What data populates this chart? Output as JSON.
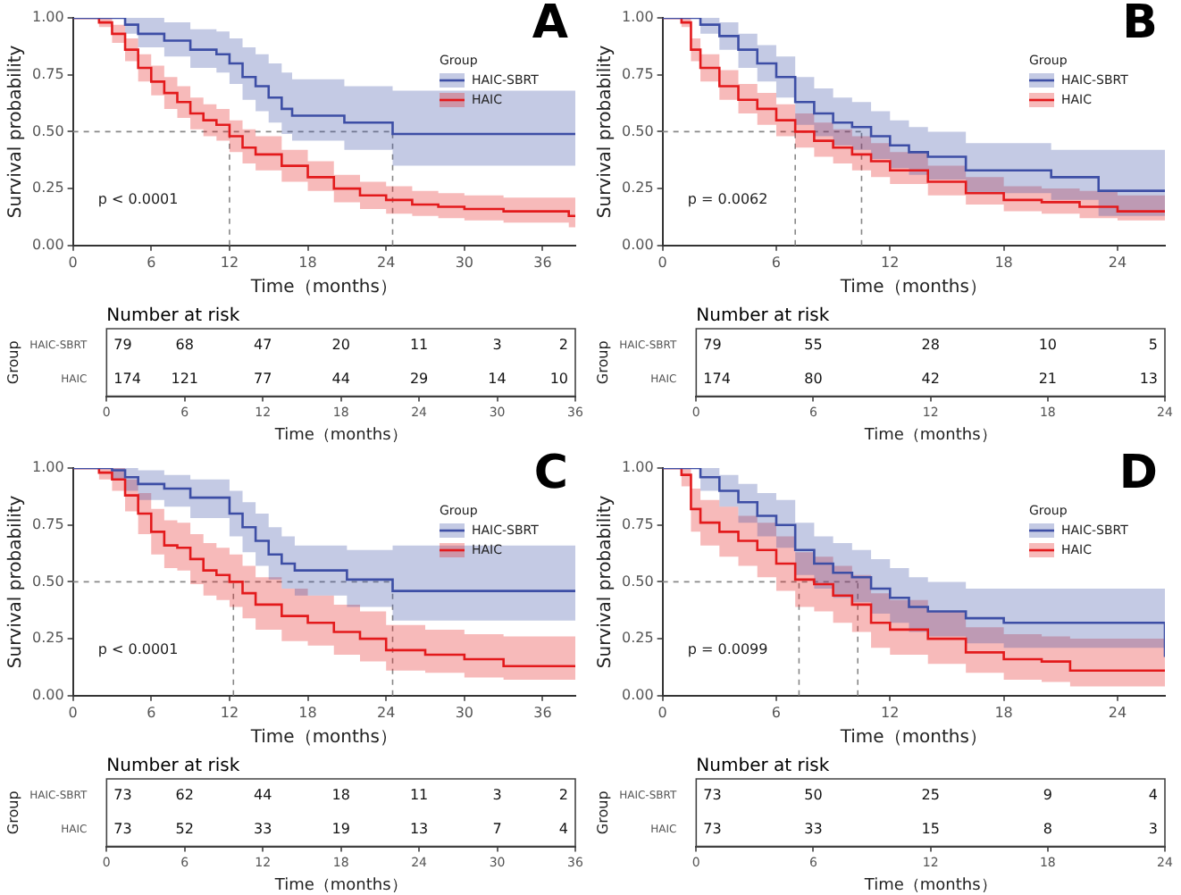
{
  "chart_data": [
    {
      "type": "step",
      "title": "A",
      "xlabel": "Time（months）",
      "ylabel": "Survival probability",
      "legend_title": "Group",
      "legend": "top right",
      "annotations": [
        "p < 0.0001"
      ],
      "xlim": [
        0,
        38.5
      ],
      "xticks": [
        0,
        6,
        12,
        18,
        24,
        30,
        36
      ],
      "ylim": [
        0,
        1
      ],
      "yticks": [
        {
          "value": 0,
          "label": "0.00"
        },
        {
          "value": 0.25,
          "label": "0.25"
        },
        {
          "value": 0.5,
          "label": "0.50"
        },
        {
          "value": 0.75,
          "label": "0.75"
        },
        {
          "value": 1,
          "label": "1.00"
        }
      ],
      "ref_lines": [
        {
          "axis": "y",
          "value": 0.5,
          "line_style": "dashed",
          "color": "#888888"
        },
        {
          "axis": "x",
          "value": 12,
          "line_style": "dashed",
          "color": "#888888"
        },
        {
          "axis": "x",
          "value": 24.5,
          "line_style": "dashed",
          "color": "#888888"
        }
      ],
      "series": [
        {
          "name": "HAIC-SBRT",
          "color": "#3d4ea5",
          "x": [
            0,
            4,
            5,
            7,
            9,
            11,
            12,
            13,
            14,
            15,
            16,
            16.8,
            20.8,
            24.5,
            38.5
          ],
          "values": [
            1,
            0.97,
            0.93,
            0.9,
            0.86,
            0.84,
            0.8,
            0.74,
            0.7,
            0.65,
            0.6,
            0.57,
            0.54,
            0.49,
            0.49
          ],
          "lower": [
            1,
            0.93,
            0.87,
            0.83,
            0.78,
            0.76,
            0.71,
            0.64,
            0.59,
            0.54,
            0.49,
            0.46,
            0.42,
            0.35,
            0.35
          ],
          "upper": [
            1,
            1,
            1,
            0.98,
            0.95,
            0.94,
            0.91,
            0.87,
            0.84,
            0.8,
            0.76,
            0.73,
            0.7,
            0.68,
            0.68
          ]
        },
        {
          "name": "HAIC",
          "color": "#e31a1c",
          "x": [
            0,
            2,
            3,
            4,
            5,
            6,
            7,
            8,
            9,
            10,
            11,
            12,
            13,
            14,
            16,
            18,
            20,
            22,
            24,
            26,
            28,
            30,
            33,
            38,
            38.5
          ],
          "values": [
            1,
            0.98,
            0.93,
            0.86,
            0.78,
            0.72,
            0.67,
            0.63,
            0.58,
            0.55,
            0.53,
            0.48,
            0.43,
            0.4,
            0.35,
            0.3,
            0.25,
            0.22,
            0.2,
            0.18,
            0.17,
            0.16,
            0.15,
            0.13,
            0.13
          ],
          "lower": [
            1,
            0.96,
            0.89,
            0.81,
            0.72,
            0.66,
            0.6,
            0.56,
            0.51,
            0.48,
            0.46,
            0.41,
            0.36,
            0.33,
            0.28,
            0.24,
            0.19,
            0.16,
            0.14,
            0.13,
            0.12,
            0.11,
            0.1,
            0.08,
            0.08
          ],
          "upper": [
            1,
            1,
            0.97,
            0.91,
            0.84,
            0.79,
            0.74,
            0.7,
            0.65,
            0.62,
            0.6,
            0.55,
            0.51,
            0.48,
            0.42,
            0.37,
            0.31,
            0.28,
            0.26,
            0.24,
            0.23,
            0.22,
            0.21,
            0.21,
            0.21
          ]
        }
      ]
    },
    {
      "type": "step",
      "title": "B",
      "xlabel": "Time（months）",
      "ylabel": "Survival probability",
      "legend_title": "Group",
      "legend": "top right",
      "annotations": [
        "p = 0.0062"
      ],
      "xlim": [
        0,
        26.5
      ],
      "xticks": [
        0,
        6,
        12,
        18,
        24
      ],
      "ylim": [
        0,
        1
      ],
      "yticks": [
        {
          "value": 0,
          "label": "0.00"
        },
        {
          "value": 0.25,
          "label": "0.25"
        },
        {
          "value": 0.5,
          "label": "0.50"
        },
        {
          "value": 0.75,
          "label": "0.75"
        },
        {
          "value": 1,
          "label": "1.00"
        }
      ],
      "ref_lines": [
        {
          "axis": "y",
          "value": 0.5,
          "line_style": "dashed",
          "color": "#888888"
        },
        {
          "axis": "x",
          "value": 7,
          "line_style": "dashed",
          "color": "#888888"
        },
        {
          "axis": "x",
          "value": 10.5,
          "line_style": "dashed",
          "color": "#888888"
        }
      ],
      "series": [
        {
          "name": "HAIC-SBRT",
          "color": "#3d4ea5",
          "x": [
            0,
            2,
            3,
            4,
            5,
            6,
            7,
            8,
            9,
            10,
            11,
            12,
            13,
            14,
            16,
            18,
            20.5,
            23,
            26.5
          ],
          "values": [
            1,
            0.97,
            0.92,
            0.86,
            0.8,
            0.74,
            0.63,
            0.58,
            0.54,
            0.52,
            0.48,
            0.44,
            0.41,
            0.39,
            0.33,
            0.33,
            0.3,
            0.24,
            0.24
          ],
          "lower": [
            1,
            0.93,
            0.86,
            0.78,
            0.72,
            0.65,
            0.53,
            0.48,
            0.44,
            0.42,
            0.38,
            0.34,
            0.31,
            0.29,
            0.23,
            0.23,
            0.2,
            0.13,
            0.13
          ],
          "upper": [
            1,
            1,
            0.98,
            0.93,
            0.88,
            0.83,
            0.74,
            0.69,
            0.65,
            0.63,
            0.59,
            0.55,
            0.52,
            0.5,
            0.45,
            0.45,
            0.42,
            0.42,
            0.42
          ]
        },
        {
          "name": "HAIC",
          "color": "#e31a1c",
          "x": [
            0,
            1,
            1.5,
            2,
            3,
            4,
            5,
            6,
            7,
            8,
            9,
            10,
            11,
            12,
            14,
            16,
            18,
            20,
            22,
            24,
            26.5
          ],
          "values": [
            1,
            0.98,
            0.86,
            0.78,
            0.7,
            0.64,
            0.6,
            0.55,
            0.5,
            0.46,
            0.43,
            0.4,
            0.37,
            0.33,
            0.28,
            0.23,
            0.2,
            0.19,
            0.17,
            0.15,
            0.15
          ],
          "lower": [
            1,
            0.96,
            0.81,
            0.72,
            0.64,
            0.58,
            0.53,
            0.48,
            0.43,
            0.39,
            0.36,
            0.33,
            0.3,
            0.27,
            0.22,
            0.18,
            0.15,
            0.14,
            0.12,
            0.11,
            0.11
          ],
          "upper": [
            1,
            1,
            0.91,
            0.84,
            0.77,
            0.71,
            0.67,
            0.62,
            0.58,
            0.54,
            0.51,
            0.48,
            0.45,
            0.41,
            0.35,
            0.3,
            0.26,
            0.25,
            0.24,
            0.22,
            0.22
          ]
        }
      ]
    },
    {
      "type": "heatmap",
      "title": "Number at risk",
      "xlabel": "Time（months）",
      "ylabel": "Group",
      "categories": [
        "0",
        "6",
        "12",
        "18",
        "24",
        "30",
        "36"
      ],
      "y_categories": [
        "HAIC-SBRT",
        "HAIC"
      ],
      "data_labels": true,
      "cells": [
        [
          79,
          68,
          47,
          20,
          11,
          3,
          2
        ],
        [
          174,
          121,
          77,
          44,
          29,
          14,
          10
        ]
      ]
    },
    {
      "type": "heatmap",
      "title": "Number at risk",
      "xlabel": "Time（months）",
      "ylabel": "Group",
      "categories": [
        "0",
        "6",
        "12",
        "18",
        "24"
      ],
      "y_categories": [
        "HAIC-SBRT",
        "HAIC"
      ],
      "data_labels": true,
      "cells": [
        [
          79,
          55,
          28,
          10,
          5
        ],
        [
          174,
          80,
          42,
          21,
          13
        ]
      ]
    },
    {
      "type": "step",
      "title": "C",
      "xlabel": "Time（months）",
      "ylabel": "Survival probability",
      "legend_title": "Group",
      "legend": "top right",
      "annotations": [
        "p < 0.0001"
      ],
      "xlim": [
        0,
        38.5
      ],
      "xticks": [
        0,
        6,
        12,
        18,
        24,
        30,
        36
      ],
      "ylim": [
        0,
        1
      ],
      "yticks": [
        {
          "value": 0,
          "label": "0.00"
        },
        {
          "value": 0.25,
          "label": "0.25"
        },
        {
          "value": 0.5,
          "label": "0.50"
        },
        {
          "value": 0.75,
          "label": "0.75"
        },
        {
          "value": 1,
          "label": "1.00"
        }
      ],
      "ref_lines": [
        {
          "axis": "y",
          "value": 0.5,
          "line_style": "dashed",
          "color": "#888888"
        },
        {
          "axis": "x",
          "value": 12.3,
          "line_style": "dashed",
          "color": "#888888"
        },
        {
          "axis": "x",
          "value": 24.5,
          "line_style": "dashed",
          "color": "#888888"
        }
      ],
      "series": [
        {
          "name": "HAIC-SBRT",
          "color": "#3d4ea5",
          "x": [
            0,
            3,
            4,
            5,
            7,
            9,
            12,
            13,
            14,
            15,
            16,
            17,
            21,
            24.5,
            38.5
          ],
          "values": [
            1,
            0.99,
            0.96,
            0.93,
            0.91,
            0.87,
            0.8,
            0.74,
            0.68,
            0.62,
            0.58,
            0.55,
            0.51,
            0.46,
            0.46
          ],
          "lower": [
            1,
            0.95,
            0.9,
            0.86,
            0.83,
            0.78,
            0.7,
            0.63,
            0.57,
            0.51,
            0.47,
            0.44,
            0.39,
            0.33,
            0.33
          ],
          "upper": [
            1,
            1,
            1,
            0.99,
            0.97,
            0.95,
            0.9,
            0.85,
            0.8,
            0.74,
            0.7,
            0.66,
            0.64,
            0.66,
            0.66
          ]
        },
        {
          "name": "HAIC",
          "color": "#e31a1c",
          "x": [
            0,
            2,
            3,
            4,
            5,
            6,
            7,
            8,
            9,
            10,
            11,
            12,
            13,
            14,
            16,
            18,
            20,
            22,
            24,
            27,
            30,
            33,
            38.5
          ],
          "values": [
            1,
            0.98,
            0.95,
            0.88,
            0.8,
            0.72,
            0.66,
            0.65,
            0.6,
            0.55,
            0.53,
            0.5,
            0.45,
            0.4,
            0.35,
            0.32,
            0.28,
            0.25,
            0.2,
            0.18,
            0.16,
            0.13,
            0.13
          ],
          "lower": [
            1,
            0.95,
            0.9,
            0.81,
            0.71,
            0.62,
            0.56,
            0.55,
            0.49,
            0.44,
            0.42,
            0.39,
            0.34,
            0.29,
            0.24,
            0.22,
            0.18,
            0.15,
            0.11,
            0.1,
            0.08,
            0.07,
            0.07
          ],
          "upper": [
            1,
            1,
            1,
            0.95,
            0.89,
            0.82,
            0.77,
            0.76,
            0.71,
            0.67,
            0.65,
            0.62,
            0.57,
            0.52,
            0.47,
            0.44,
            0.4,
            0.37,
            0.31,
            0.29,
            0.27,
            0.26,
            0.26
          ]
        }
      ]
    },
    {
      "type": "step",
      "title": "D",
      "xlabel": "Time（months）",
      "ylabel": "Survival probability",
      "legend_title": "Group",
      "legend": "top right",
      "annotations": [
        "p = 0.0099"
      ],
      "xlim": [
        0,
        26.5
      ],
      "xticks": [
        0,
        6,
        12,
        18,
        24
      ],
      "ylim": [
        0,
        1
      ],
      "yticks": [
        {
          "value": 0,
          "label": "0.00"
        },
        {
          "value": 0.25,
          "label": "0.25"
        },
        {
          "value": 0.5,
          "label": "0.50"
        },
        {
          "value": 0.75,
          "label": "0.75"
        },
        {
          "value": 1,
          "label": "1.00"
        }
      ],
      "ref_lines": [
        {
          "axis": "y",
          "value": 0.5,
          "line_style": "dashed",
          "color": "#888888"
        },
        {
          "axis": "x",
          "value": 7.2,
          "line_style": "dashed",
          "color": "#888888"
        },
        {
          "axis": "x",
          "value": 10.3,
          "line_style": "dashed",
          "color": "#888888"
        }
      ],
      "series": [
        {
          "name": "HAIC-SBRT",
          "color": "#3d4ea5",
          "x": [
            0,
            2,
            3,
            4,
            5,
            6,
            7,
            8,
            9,
            10,
            11,
            12,
            13,
            14,
            16,
            18,
            26.3,
            26.5
          ],
          "values": [
            1,
            0.96,
            0.9,
            0.85,
            0.79,
            0.75,
            0.64,
            0.58,
            0.54,
            0.52,
            0.47,
            0.43,
            0.39,
            0.37,
            0.34,
            0.32,
            0.32,
            0.17
          ],
          "lower": [
            1,
            0.9,
            0.83,
            0.76,
            0.7,
            0.65,
            0.53,
            0.47,
            0.43,
            0.41,
            0.36,
            0.32,
            0.28,
            0.26,
            0.23,
            0.21,
            0.21,
            0.1
          ],
          "upper": [
            1,
            1,
            0.97,
            0.93,
            0.89,
            0.86,
            0.76,
            0.7,
            0.67,
            0.64,
            0.6,
            0.56,
            0.52,
            0.5,
            0.47,
            0.47,
            0.47,
            0.47
          ]
        },
        {
          "name": "HAIC",
          "color": "#e31a1c",
          "x": [
            0,
            1,
            1.5,
            2,
            3,
            4,
            5,
            6,
            7,
            8,
            9,
            10,
            11,
            12,
            14,
            16,
            18,
            20,
            21.5,
            26.5
          ],
          "values": [
            1,
            0.97,
            0.82,
            0.76,
            0.72,
            0.68,
            0.64,
            0.58,
            0.51,
            0.49,
            0.44,
            0.4,
            0.32,
            0.29,
            0.25,
            0.19,
            0.16,
            0.15,
            0.11,
            0.11
          ],
          "lower": [
            1,
            0.92,
            0.72,
            0.66,
            0.61,
            0.57,
            0.52,
            0.46,
            0.39,
            0.37,
            0.32,
            0.28,
            0.21,
            0.18,
            0.14,
            0.1,
            0.07,
            0.06,
            0.04,
            0.04
          ],
          "upper": [
            1,
            1,
            0.91,
            0.86,
            0.83,
            0.79,
            0.76,
            0.7,
            0.63,
            0.61,
            0.57,
            0.53,
            0.45,
            0.42,
            0.37,
            0.3,
            0.27,
            0.26,
            0.25,
            0.25
          ]
        }
      ]
    },
    {
      "type": "heatmap",
      "title": "Number at risk",
      "xlabel": "Time（months）",
      "ylabel": "Group",
      "categories": [
        "0",
        "6",
        "12",
        "18",
        "24",
        "30",
        "36"
      ],
      "y_categories": [
        "HAIC-SBRT",
        "HAIC"
      ],
      "data_labels": true,
      "cells": [
        [
          73,
          62,
          44,
          18,
          11,
          3,
          2
        ],
        [
          73,
          52,
          33,
          19,
          13,
          7,
          4
        ]
      ]
    },
    {
      "type": "heatmap",
      "title": "Number at risk",
      "xlabel": "Time（months）",
      "ylabel": "Group",
      "categories": [
        "0",
        "6",
        "12",
        "18",
        "24"
      ],
      "y_categories": [
        "HAIC-SBRT",
        "HAIC"
      ],
      "data_labels": true,
      "cells": [
        [
          73,
          50,
          25,
          9,
          4
        ],
        [
          73,
          33,
          15,
          8,
          3
        ]
      ]
    }
  ]
}
